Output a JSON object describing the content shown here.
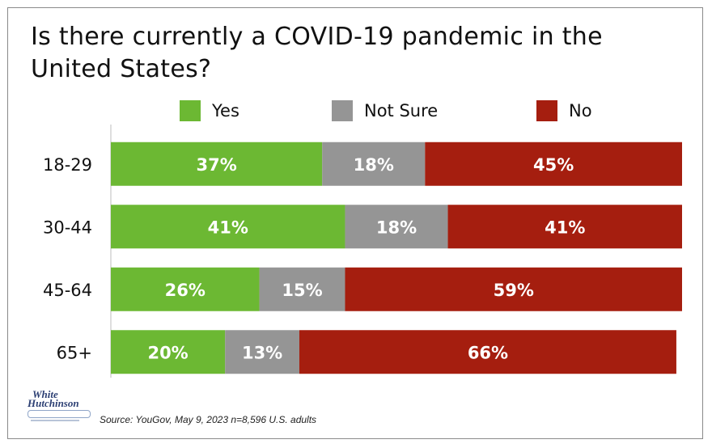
{
  "chart_data": {
    "type": "bar",
    "orientation": "horizontal",
    "stacked": true,
    "title": "Is there currently a COVID-19 pandemic in the United States?",
    "categories": [
      "18-29",
      "30-44",
      "45-64",
      "65+"
    ],
    "series": [
      {
        "name": "Yes",
        "color": "#6cb833",
        "values": [
          37,
          41,
          26,
          20
        ]
      },
      {
        "name": "Not Sure",
        "color": "#959595",
        "values": [
          18,
          18,
          15,
          13
        ]
      },
      {
        "name": "No",
        "color": "#a51e0f",
        "values": [
          45,
          41,
          59,
          66
        ]
      }
    ],
    "value_format": "percent",
    "xlim": [
      0,
      100
    ],
    "legend_position": "top",
    "grid": false
  },
  "source": "Source: YouGov, May 9, 2023 n=8,596 U.S. adults",
  "logo": {
    "icon": "white-hutchinson-logo",
    "text": "White Hutchinson"
  }
}
